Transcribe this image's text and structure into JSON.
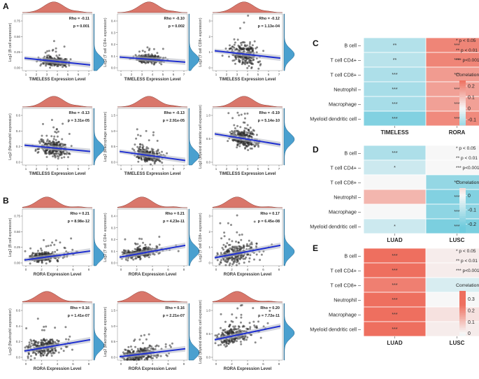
{
  "panel_labels": [
    "A",
    "B",
    "C",
    "D",
    "E"
  ],
  "scatter_panels": {
    "A": {
      "xlabel": "TIMELESS Expression Level",
      "plots": [
        {
          "ylabel": "Log2 (B cell expression)",
          "rho": "Rho = -0.11",
          "p": "p = 0.001",
          "x_ticks": [
            "1",
            "2",
            "3",
            "4",
            "5",
            "6",
            "7"
          ],
          "y_ticks": [
            "0.00",
            "0.25",
            "0.50",
            "0.75"
          ],
          "trend": [
            0.22,
            0.1
          ],
          "spread": 0.09,
          "seed": 11
        },
        {
          "ylabel": "Log2 (T cell CD4+ expression)",
          "rho": "Rho = -0.10",
          "p": "p = 0.002",
          "x_ticks": [
            "1",
            "2",
            "3",
            "4",
            "5",
            "6",
            "7"
          ],
          "y_ticks": [
            "0.0",
            "0.1",
            "0.2",
            "0.3",
            "0.4"
          ],
          "trend": [
            0.24,
            0.15
          ],
          "spread": 0.07,
          "seed": 12
        },
        {
          "ylabel": "Log2 (T cell CD8+ expression)",
          "rho": "Rho = -0.12",
          "p": "p = 1.13e-04",
          "x_ticks": [
            "1",
            "2",
            "3",
            "4",
            "5",
            "6",
            "7"
          ],
          "y_ticks": [
            "0",
            "1",
            "2",
            "3"
          ],
          "trend": [
            0.35,
            0.22
          ],
          "spread": 0.2,
          "seed": 13
        },
        {
          "ylabel": "Log2 (Neutrophil expression)",
          "rho": "Rho = -0.13",
          "p": "p = 3.31e-05",
          "x_ticks": [
            "1",
            "2",
            "3",
            "4",
            "5",
            "6",
            "7"
          ],
          "y_ticks": [
            "0.0",
            "0.2",
            "0.4",
            "0.6"
          ],
          "trend": [
            0.35,
            0.24
          ],
          "spread": 0.15,
          "seed": 14
        },
        {
          "ylabel": "Log2 (Macrophage expression)",
          "rho": "Rho = -0.13",
          "p": "p = 2.91e-05",
          "x_ticks": [
            "1",
            "2",
            "3",
            "4",
            "5",
            "6",
            "7"
          ],
          "y_ticks": [
            "0.0",
            "0.5",
            "1.0",
            "1.5"
          ],
          "trend": [
            0.24,
            0.08
          ],
          "spread": 0.12,
          "seed": 15
        },
        {
          "ylabel": "Log2 (Myeloid dendritic cell expression)",
          "rho": "Rho = -0.19",
          "p": "p = 5.14e-10",
          "x_ticks": [
            "1",
            "2",
            "3",
            "4",
            "5",
            "6",
            "7"
          ],
          "y_ticks": [
            "0.0",
            "0.5",
            "1.0"
          ],
          "trend": [
            0.55,
            0.36
          ],
          "spread": 0.16,
          "seed": 16
        }
      ]
    },
    "B": {
      "xlabel": "RORA Expression Level",
      "plots": [
        {
          "ylabel": "Log2 (B cell expression)",
          "rho": "Rho = 0.21",
          "p": "p = 8.98e-12",
          "x_ticks": [
            "0",
            "2",
            "4",
            "6",
            "8"
          ],
          "y_ticks": [
            "0.00",
            "0.25",
            "0.50",
            "0.75"
          ],
          "trend": [
            0.1,
            0.26
          ],
          "spread": 0.09,
          "seed": 21
        },
        {
          "ylabel": "Log2 (T cell CD4+ expression)",
          "rho": "Rho = 0.21",
          "p": "p = 4.23e-11",
          "x_ticks": [
            "0",
            "2",
            "4",
            "6",
            "8"
          ],
          "y_ticks": [
            "0.0",
            "0.1",
            "0.2",
            "0.3",
            "0.4"
          ],
          "trend": [
            0.15,
            0.36
          ],
          "spread": 0.1,
          "seed": 22
        },
        {
          "ylabel": "Log2 (T cell CD8+ expression)",
          "rho": "Rho = 0.17",
          "p": "p = 6.45e-08",
          "x_ticks": [
            "0",
            "2",
            "4",
            "6",
            "8"
          ],
          "y_ticks": [
            "0",
            "1",
            "2",
            "3"
          ],
          "trend": [
            0.14,
            0.36
          ],
          "spread": 0.2,
          "seed": 23
        },
        {
          "ylabel": "Log2 (Neutrophil expression)",
          "rho": "Rho = 0.16",
          "p": "p = 1.41e-07",
          "x_ticks": [
            "0",
            "2",
            "4",
            "6",
            "8"
          ],
          "y_ticks": [
            "0.0",
            "0.2",
            "0.4",
            "0.6"
          ],
          "trend": [
            0.16,
            0.36
          ],
          "spread": 0.15,
          "seed": 24
        },
        {
          "ylabel": "Log2 (Macrophage expression)",
          "rho": "Rho = 0.16",
          "p": "p = 2.21e-07",
          "x_ticks": [
            "0",
            "2",
            "4",
            "6",
            "8"
          ],
          "y_ticks": [
            "0.0",
            "0.5",
            "1.0",
            "1.5"
          ],
          "trend": [
            0.06,
            0.2
          ],
          "spread": 0.12,
          "seed": 25
        },
        {
          "ylabel": "Log2 (Myeloid dendritic cell expression)",
          "rho": "Rho = 0.20",
          "p": "p = 7.72e-11",
          "x_ticks": [
            "0",
            "2",
            "4",
            "6",
            "8"
          ],
          "y_ticks": [
            "0.0",
            "0.5",
            "1.0"
          ],
          "trend": [
            0.36,
            0.6
          ],
          "spread": 0.16,
          "seed": 26
        }
      ]
    }
  },
  "chart_data": [
    {
      "type": "heatmap",
      "label": "C",
      "rows": [
        "B cell",
        "T cell CD4+",
        "T cell CD8+",
        "Neutrophil",
        "Macrophage",
        "Myeloid dendritic cell"
      ],
      "columns": [
        "TIMELESS",
        "RORA"
      ],
      "values": [
        [
          -0.11,
          0.21
        ],
        [
          -0.1,
          0.21
        ],
        [
          -0.12,
          0.17
        ],
        [
          -0.13,
          0.16
        ],
        [
          -0.13,
          0.16
        ],
        [
          -0.19,
          0.2
        ]
      ],
      "stars": [
        [
          "**",
          "***"
        ],
        [
          "**",
          "***"
        ],
        [
          "***",
          "***"
        ],
        [
          "***",
          "***"
        ],
        [
          "***",
          "***"
        ],
        [
          "***",
          "***"
        ]
      ],
      "legend_title": "Correlation",
      "legend_range": [
        -0.15,
        0.25
      ],
      "legend_ticks": [
        "0.2",
        "0.1",
        "0",
        "-0.1"
      ],
      "legend_tick_values": [
        0.2,
        0.1,
        0,
        -0.1
      ],
      "significance": [
        "* p < 0.05",
        "** p < 0.01",
        "*** p<0.001"
      ]
    },
    {
      "type": "heatmap",
      "label": "D",
      "rows": [
        "B cell",
        "T cell CD4+",
        "T cell CD8+",
        "Neutrophil",
        "Macrophage",
        "Myeloid dendritic cell"
      ],
      "columns": [
        "LUAD",
        "LUSC"
      ],
      "values": [
        [
          -0.12,
          0.0
        ],
        [
          -0.07,
          0.0
        ],
        [
          0.0,
          -0.16
        ],
        [
          0.12,
          -0.19
        ],
        [
          0.0,
          -0.17
        ],
        [
          -0.07,
          -0.2
        ]
      ],
      "stars": [
        [
          "***",
          ""
        ],
        [
          "*",
          ""
        ],
        [
          "",
          "***"
        ],
        [
          "",
          "***"
        ],
        [
          "",
          "***"
        ],
        [
          "*",
          "***"
        ]
      ],
      "legend_title": "Correlation",
      "legend_range": [
        -0.26,
        0.05
      ],
      "legend_ticks": [
        "0",
        "-0.1",
        "-0.2"
      ],
      "legend_tick_values": [
        0,
        -0.1,
        -0.2
      ],
      "significance": [
        "* p < 0.05",
        "** p < 0.01",
        "*** p<0.001"
      ]
    },
    {
      "type": "heatmap",
      "label": "E",
      "rows": [
        "B cell",
        "T cell CD4+",
        "T cell CD8+",
        "Neutrophil",
        "Macrophage",
        "Myeloid dendritic cell"
      ],
      "columns": [
        "LUAD",
        "LUSC"
      ],
      "values": [
        [
          0.3,
          0.02
        ],
        [
          0.32,
          0.02
        ],
        [
          0.22,
          -0.05
        ],
        [
          0.31,
          0.0
        ],
        [
          0.26,
          0.04
        ],
        [
          0.29,
          0.02
        ]
      ],
      "stars": [
        [
          "***",
          ""
        ],
        [
          "***",
          ""
        ],
        [
          "***",
          ""
        ],
        [
          "***",
          ""
        ],
        [
          "***",
          ""
        ],
        [
          "***",
          ""
        ]
      ],
      "legend_title": "Correlation",
      "legend_range": [
        -0.02,
        0.37
      ],
      "legend_ticks": [
        "0.3",
        "0.2",
        "0.1",
        "0"
      ],
      "legend_tick_values": [
        0.3,
        0.2,
        0.1,
        0
      ],
      "significance": [
        "* p < 0.05",
        "** p < 0.01",
        "*** p<0.001"
      ]
    }
  ],
  "colors": {
    "positive": "#ee6f5f",
    "neutral": "#f7f7f7",
    "negative": "#6fcbdd",
    "density_top": "#d9766a",
    "density_right": "#4aa0cf",
    "points": "#2b2b2b",
    "trend": "#1f2fd1",
    "ci_band": "#b9bcc8"
  }
}
